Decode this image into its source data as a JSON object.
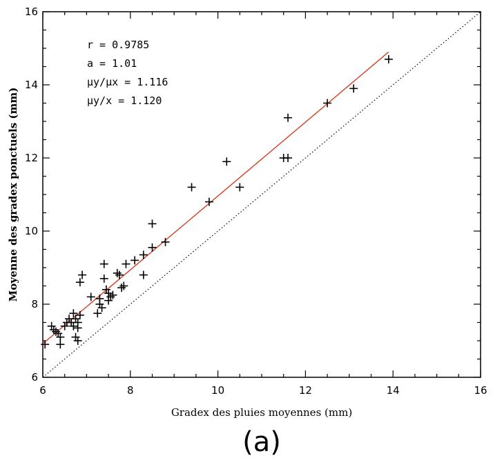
{
  "chart_data": {
    "type": "scatter",
    "title": "",
    "xlabel": "Gradex des pluies moyennes (mm)",
    "ylabel": "Moyenne des gradex ponctuels (mm)",
    "xlim": [
      6,
      16
    ],
    "ylim": [
      6,
      16
    ],
    "xticks": [
      "6",
      "8",
      "10",
      "12",
      "14",
      "16"
    ],
    "yticks": [
      "6",
      "8",
      "10",
      "12",
      "14",
      "16"
    ],
    "grid": false,
    "panel_label": "(a)",
    "annotations": [
      {
        "key": "r",
        "text": "r = 0.9785"
      },
      {
        "key": "a",
        "text": "a = 1.01"
      },
      {
        "key": "ratio_means",
        "text": "μy/μx = 1.116"
      },
      {
        "key": "mean_ratio",
        "text": "μy/x = 1.120"
      }
    ],
    "series": [
      {
        "type": "scatter",
        "marker": "plus",
        "color": "#000000",
        "x": [
          6.05,
          6.2,
          6.25,
          6.3,
          6.35,
          6.4,
          6.4,
          6.5,
          6.55,
          6.6,
          6.65,
          6.7,
          6.7,
          6.75,
          6.75,
          6.8,
          6.8,
          6.8,
          6.85,
          6.85,
          6.9,
          7.1,
          7.25,
          7.3,
          7.3,
          7.35,
          7.4,
          7.4,
          7.45,
          7.5,
          7.5,
          7.55,
          7.6,
          7.7,
          7.75,
          7.8,
          7.85,
          7.9,
          8.1,
          8.3,
          8.3,
          8.5,
          8.5,
          8.8,
          9.4,
          9.8,
          10.2,
          10.5,
          11.5,
          11.6,
          11.6,
          12.5,
          13.1,
          13.9
        ],
        "y": [
          6.9,
          7.4,
          7.3,
          7.25,
          7.2,
          7.1,
          6.9,
          7.4,
          7.5,
          7.6,
          7.5,
          7.4,
          7.75,
          7.6,
          7.1,
          7.5,
          7.35,
          7.0,
          7.7,
          8.6,
          8.8,
          8.2,
          7.75,
          8.0,
          8.15,
          7.9,
          9.1,
          8.7,
          8.4,
          8.3,
          8.1,
          8.2,
          8.25,
          8.85,
          8.8,
          8.45,
          8.5,
          9.1,
          9.2,
          9.35,
          8.8,
          9.55,
          10.2,
          9.7,
          11.2,
          10.8,
          11.9,
          11.2,
          12.0,
          12.0,
          13.1,
          13.5,
          13.9,
          14.7
        ]
      },
      {
        "type": "line",
        "role": "fit",
        "color": "#d83a20",
        "x": [
          6.0,
          13.9
        ],
        "y": [
          6.92,
          14.9
        ]
      },
      {
        "type": "line",
        "role": "identity",
        "style": "dotted",
        "color": "#000000",
        "x": [
          6,
          16
        ],
        "y": [
          6,
          16
        ]
      }
    ]
  }
}
